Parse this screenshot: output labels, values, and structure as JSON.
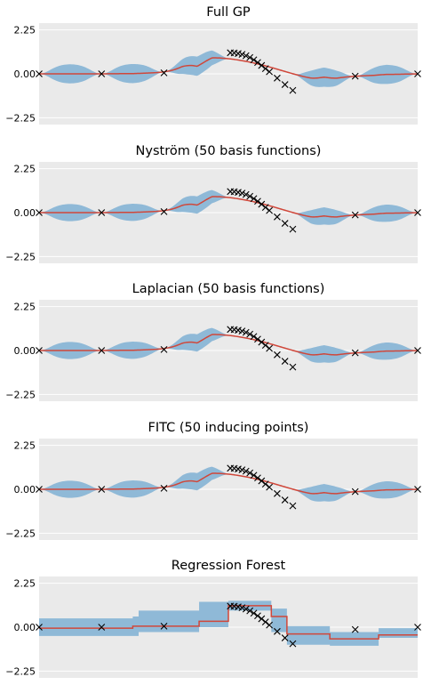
{
  "chart_data": [
    {
      "type": "line",
      "title": "Full GP",
      "xlabel": "",
      "ylabel": "",
      "ylim": [
        -2.6,
        2.6
      ],
      "yticks": [
        "2.25",
        "0.00",
        "−2.25"
      ],
      "grid": true,
      "colors": {
        "mean": "#d0473a",
        "band": "#7fb0d4",
        "obs": "#000000",
        "bg": "#eaeaea"
      },
      "observations": {
        "x": [
          0.0,
          1.6,
          3.2,
          4.9,
          5.0,
          5.1,
          5.2,
          5.3,
          5.4,
          5.5,
          5.6,
          5.7,
          5.8,
          5.9,
          6.1,
          6.3,
          6.5,
          8.1,
          9.7
        ],
        "y": [
          0.0,
          0.0,
          0.05,
          1.08,
          1.07,
          1.04,
          1.0,
          0.93,
          0.84,
          0.72,
          0.58,
          0.43,
          0.27,
          0.11,
          -0.22,
          -0.55,
          -0.85,
          -0.12,
          0.0
        ]
      },
      "band_halfwidth_max": 0.5
    },
    {
      "type": "line",
      "title": "Nyström (50 basis functions)",
      "xlabel": "",
      "ylabel": "",
      "ylim": [
        -2.6,
        2.6
      ],
      "yticks": [
        "2.25",
        "0.00",
        "−2.25"
      ],
      "grid": true,
      "observations": {
        "x": [
          0.0,
          1.6,
          3.2,
          4.9,
          5.0,
          5.1,
          5.2,
          5.3,
          5.4,
          5.5,
          5.6,
          5.7,
          5.8,
          5.9,
          6.1,
          6.3,
          6.5,
          8.1,
          9.7
        ],
        "y": [
          0.0,
          0.0,
          0.05,
          1.08,
          1.07,
          1.04,
          1.0,
          0.93,
          0.84,
          0.72,
          0.58,
          0.43,
          0.27,
          0.11,
          -0.22,
          -0.55,
          -0.85,
          -0.12,
          0.0
        ]
      },
      "band_halfwidth_max": 0.45
    },
    {
      "type": "line",
      "title": "Laplacian (50 basis functions)",
      "xlabel": "",
      "ylabel": "",
      "ylim": [
        -2.6,
        2.6
      ],
      "yticks": [
        "2.25",
        "0.00",
        "−2.25"
      ],
      "grid": true,
      "observations": {
        "x": [
          0.0,
          1.6,
          3.2,
          4.9,
          5.0,
          5.1,
          5.2,
          5.3,
          5.4,
          5.5,
          5.6,
          5.7,
          5.8,
          5.9,
          6.1,
          6.3,
          6.5,
          8.1,
          9.7
        ],
        "y": [
          0.0,
          0.0,
          0.05,
          1.08,
          1.07,
          1.04,
          1.0,
          0.93,
          0.84,
          0.72,
          0.58,
          0.43,
          0.27,
          0.11,
          -0.22,
          -0.55,
          -0.85,
          -0.12,
          0.0
        ]
      },
      "band_halfwidth_max": 0.45
    },
    {
      "type": "line",
      "title": "FITC (50 inducing points)",
      "xlabel": "",
      "ylabel": "",
      "ylim": [
        -2.6,
        2.6
      ],
      "yticks": [
        "2.25",
        "0.00",
        "−2.25"
      ],
      "grid": true,
      "observations": {
        "x": [
          0.0,
          1.6,
          3.2,
          4.9,
          5.0,
          5.1,
          5.2,
          5.3,
          5.4,
          5.5,
          5.6,
          5.7,
          5.8,
          5.9,
          6.1,
          6.3,
          6.5,
          8.1,
          9.7
        ],
        "y": [
          0.0,
          0.0,
          0.05,
          1.08,
          1.07,
          1.04,
          1.0,
          0.93,
          0.84,
          0.72,
          0.58,
          0.43,
          0.27,
          0.11,
          -0.22,
          -0.55,
          -0.85,
          -0.12,
          0.0
        ]
      },
      "band_halfwidth_max": 0.45
    },
    {
      "type": "line",
      "title": "Regression Forest",
      "xlabel": "",
      "ylabel": "",
      "ylim": [
        -2.6,
        2.6
      ],
      "yticks": [
        "2.25",
        "0.00",
        "−2.25"
      ],
      "grid": true,
      "observations": {
        "x": [
          0.0,
          1.6,
          3.2,
          4.9,
          5.0,
          5.1,
          5.2,
          5.3,
          5.4,
          5.5,
          5.6,
          5.7,
          5.8,
          5.9,
          6.1,
          6.3,
          6.5,
          8.1,
          9.7
        ],
        "y": [
          0.0,
          0.0,
          0.05,
          1.08,
          1.07,
          1.04,
          1.0,
          0.93,
          0.84,
          0.72,
          0.58,
          0.43,
          0.27,
          0.11,
          -0.22,
          -0.55,
          -0.85,
          -0.12,
          0.0
        ]
      },
      "step_mean": {
        "x": [
          0.0,
          2.4,
          4.1,
          4.85,
          5.95,
          6.35,
          7.45,
          8.7,
          9.7
        ],
        "y": [
          -0.05,
          0.05,
          0.3,
          1.1,
          0.55,
          -0.35,
          -0.6,
          -0.4,
          -0.15
        ]
      },
      "step_band": {
        "x": [
          0.0,
          2.4,
          2.55,
          4.1,
          4.85,
          5.95,
          6.35,
          7.45,
          8.7,
          9.7
        ],
        "lo": [
          -0.45,
          -0.45,
          -0.25,
          0.0,
          0.85,
          -0.25,
          -0.9,
          -0.95,
          -0.55,
          -0.45
        ],
        "hi": [
          0.45,
          0.55,
          0.85,
          1.3,
          1.35,
          0.95,
          0.05,
          -0.25,
          -0.05,
          0.35
        ]
      }
    }
  ]
}
